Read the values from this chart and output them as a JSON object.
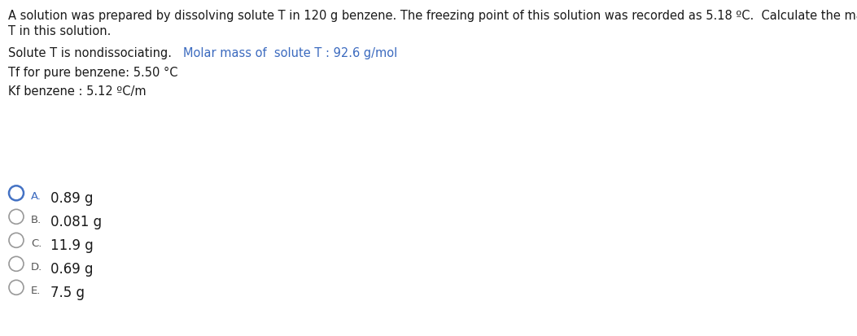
{
  "background_color": "#ffffff",
  "title_line1": "A solution was prepared by dissolving solute T in 120 g benzene. The freezing point of this solution was recorded as 5.18 ºC.  Calculate the mass of solute",
  "title_line2": "T in this solution.",
  "line3_part1": "Solute T is nondissociating.",
  "line3_gap": "    ",
  "line3_part2": "Molar mass of  solute T : 92.6 g/mol",
  "line4": "Tf for pure benzene: 5.50 °C",
  "line5": "Kf benzene : 5.12 ºC/m",
  "options": [
    {
      "label": "A.",
      "text": "0.89 g",
      "selected": true
    },
    {
      "label": "B.",
      "text": "0.081 g",
      "selected": false
    },
    {
      "label": "C.",
      "text": "11.9 g",
      "selected": false
    },
    {
      "label": "D.",
      "text": "0.69 g",
      "selected": false
    },
    {
      "label": "E.",
      "text": "7.5 g",
      "selected": false
    }
  ],
  "text_color": "#1a1a1a",
  "blue_color": "#3b6abf",
  "circle_selected": "#4472c4",
  "circle_default": "#999999",
  "label_color_selected": "#3b6abf",
  "label_color_default": "#555555",
  "option_text_color": "#1a1a1a",
  "body_fontsize": 10.5,
  "option_label_fontsize": 9.5,
  "option_text_fontsize": 12
}
